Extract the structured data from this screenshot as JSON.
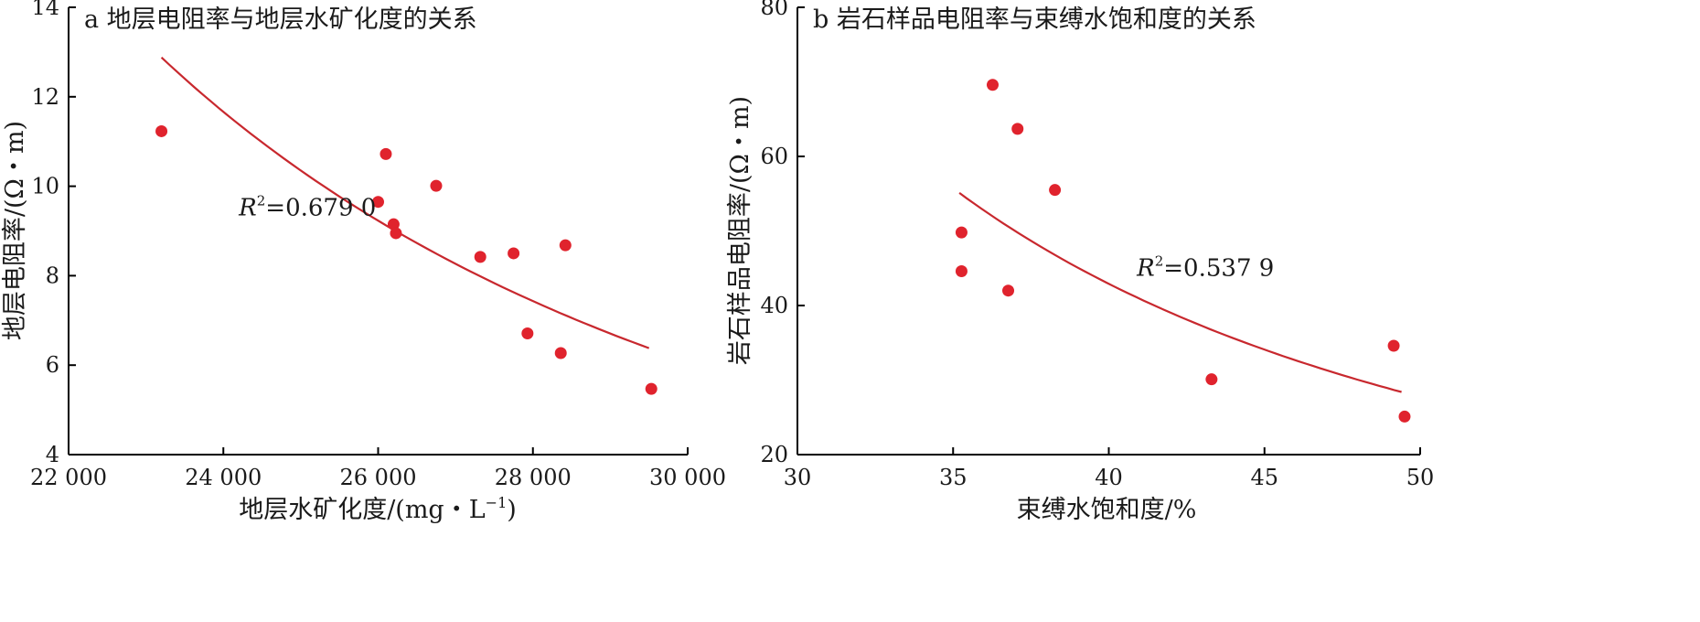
{
  "chart_data": [
    {
      "type": "scatter",
      "title": "a 地层电阻率与地层水矿化度的关系",
      "xlabel": "地层水矿化度/(mg・L",
      "xlabel_sup": "−1",
      "xlabel_end": ")",
      "ylabel": "地层电阻率/(Ω・m)",
      "xlim": [
        22000,
        30000
      ],
      "ylim": [
        4,
        14
      ],
      "xticks": [
        22000,
        24000,
        26000,
        28000,
        30000
      ],
      "xtick_labels": [
        "22 000",
        "24 000",
        "26 000",
        "28 000",
        "30 000"
      ],
      "yticks": [
        4,
        6,
        8,
        10,
        12,
        14
      ],
      "ytick_labels": [
        "4",
        "6",
        "8",
        "10",
        "12",
        "14"
      ],
      "points": [
        {
          "x": 23200,
          "y": 11.23
        },
        {
          "x": 26000,
          "y": 9.65
        },
        {
          "x": 26100,
          "y": 10.72
        },
        {
          "x": 26200,
          "y": 9.15
        },
        {
          "x": 26230,
          "y": 8.95
        },
        {
          "x": 26750,
          "y": 10.01
        },
        {
          "x": 27320,
          "y": 8.42
        },
        {
          "x": 27750,
          "y": 8.5
        },
        {
          "x": 27930,
          "y": 6.71
        },
        {
          "x": 28360,
          "y": 6.27
        },
        {
          "x": 28420,
          "y": 8.68
        },
        {
          "x": 29530,
          "y": 5.47
        }
      ],
      "trendline": {
        "form": "power",
        "x_range": [
          23200,
          29500
        ],
        "y_at_ends": [
          12.88,
          6.38
        ],
        "r2_prefix": "R",
        "r2_sup": "2",
        "r2_value": "=0.679 0",
        "label_at": [
          24200,
          9.35
        ]
      },
      "grid": false,
      "point_color": "#e0232d",
      "line_color": "#c8282e"
    },
    {
      "type": "scatter",
      "title": "b 岩石样品电阻率与束缚水饱和度的关系",
      "xlabel": "束缚水饱和度/%",
      "ylabel": "岩石样品电阻率/(Ω・m)",
      "xlim": [
        30,
        50
      ],
      "ylim": [
        20,
        80
      ],
      "xticks": [
        30,
        35,
        40,
        45,
        50
      ],
      "xtick_labels": [
        "30",
        "35",
        "40",
        "45",
        "50"
      ],
      "yticks": [
        20,
        40,
        60,
        80
      ],
      "ytick_labels": [
        "20",
        "40",
        "60",
        "80"
      ],
      "points": [
        {
          "x": 35.27,
          "y": 49.8
        },
        {
          "x": 35.27,
          "y": 44.6
        },
        {
          "x": 36.27,
          "y": 69.6
        },
        {
          "x": 36.77,
          "y": 42.0
        },
        {
          "x": 37.07,
          "y": 63.7
        },
        {
          "x": 38.27,
          "y": 55.5
        },
        {
          "x": 43.3,
          "y": 30.1
        },
        {
          "x": 49.15,
          "y": 34.6
        },
        {
          "x": 49.5,
          "y": 25.1
        }
      ],
      "trendline": {
        "form": "power",
        "x_range": [
          35.2,
          49.4
        ],
        "y_at_ends": [
          55.1,
          28.4
        ],
        "r2_prefix": "R",
        "r2_sup": "2",
        "r2_value": "=0.537 9",
        "label_at": [
          40.9,
          44.0
        ]
      },
      "grid": false,
      "point_color": "#e0232d",
      "line_color": "#c8282e"
    }
  ]
}
